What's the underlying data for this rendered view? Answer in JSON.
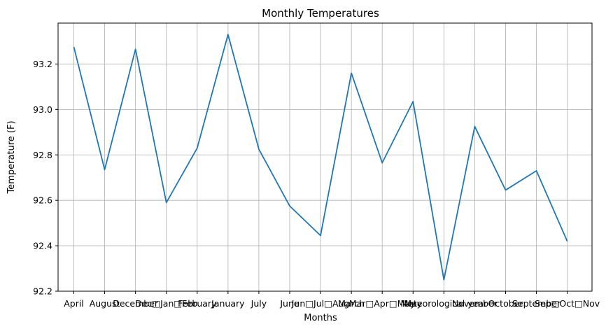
{
  "chart_data": {
    "type": "line",
    "title": "Monthly Temperatures",
    "xlabel": "Months",
    "ylabel": "Temperature (F)",
    "grid": true,
    "ylim": [
      92.2,
      93.38
    ],
    "yticks": [
      "92.2",
      "92.4",
      "92.6",
      "92.8",
      "93.0",
      "93.2"
    ],
    "categories": [
      "April",
      "August",
      "December",
      "Dec□Jan□Feb",
      "February",
      "January",
      "July",
      "June",
      "Jun□Jul□Aug",
      "March",
      "Mar□Apr□May",
      "May",
      "Meteorological year",
      "November",
      "October",
      "September",
      "Sep□Oct□Nov"
    ],
    "series": [
      {
        "color": "#1f77b4",
        "values": [
          93.275,
          92.735,
          93.265,
          92.59,
          92.83,
          93.33,
          92.825,
          92.575,
          92.445,
          93.16,
          92.765,
          93.035,
          92.25,
          92.925,
          92.645,
          92.73,
          92.42
        ]
      }
    ]
  }
}
